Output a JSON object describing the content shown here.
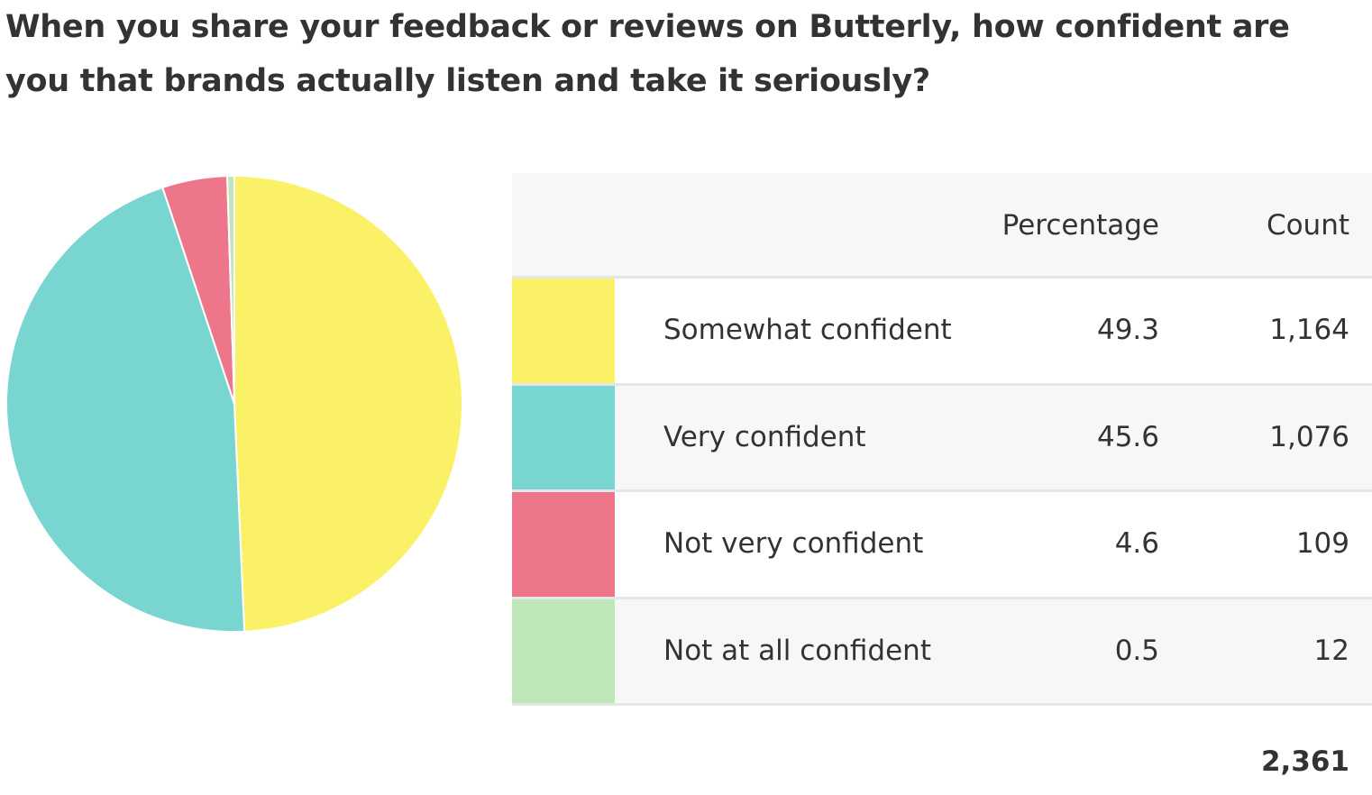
{
  "title": "When you share your feedback or reviews on Butterly, how confident are you that brands actually listen and take it seriously?",
  "table": {
    "header_percentage": "Percentage",
    "header_count": "Count",
    "total": "2,361"
  },
  "chart_data": {
    "type": "pie",
    "title": "When you share your feedback or reviews on Butterly, how confident are you that brands actually listen and take it seriously?",
    "legend_position": "right",
    "slices": [
      {
        "label": "Somewhat confident",
        "percentage": "49.3",
        "value": 49.3,
        "count": "1,164",
        "color": "#fbf166"
      },
      {
        "label": "Very confident",
        "percentage": "45.6",
        "value": 45.6,
        "count": "1,076",
        "color": "#79d5d0"
      },
      {
        "label": "Not very confident",
        "percentage": "4.6",
        "value": 4.6,
        "count": "109",
        "color": "#ee768a"
      },
      {
        "label": "Not at all confident",
        "percentage": "0.5",
        "value": 0.5,
        "count": "12",
        "color": "#bfe6b8"
      }
    ],
    "total": "2,361"
  }
}
